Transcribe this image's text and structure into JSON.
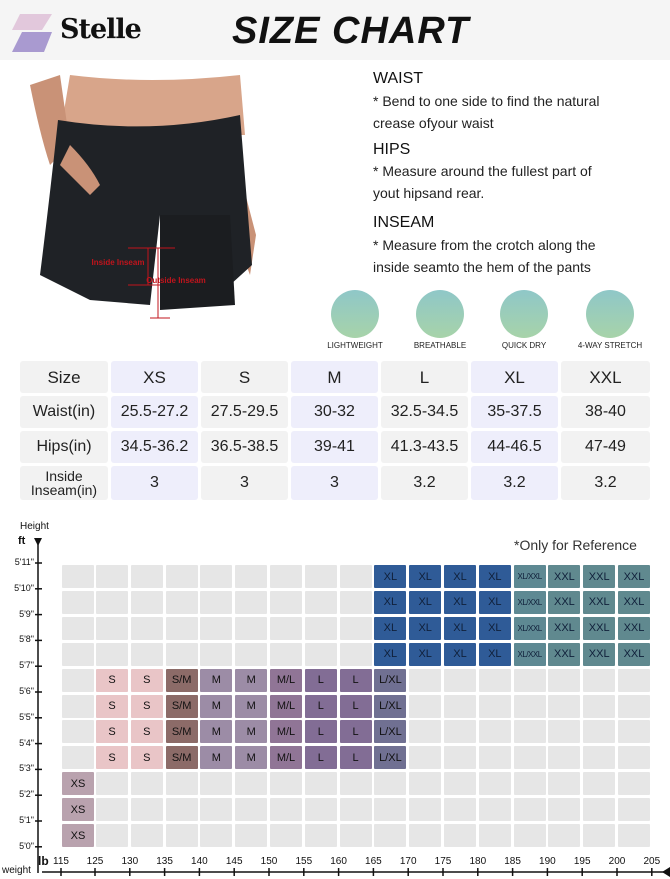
{
  "header": {
    "brand": "Stelle",
    "title": "SIZE CHART"
  },
  "photo": {
    "inside_label": "Inside Inseam",
    "outside_label": "Outside Inseam"
  },
  "guide": [
    {
      "heading": "WAIST",
      "lines": [
        "* Bend to one side to find the natural",
        "crease ofyour waist"
      ]
    },
    {
      "heading": "HIPS",
      "lines": [
        "* Measure around the fullest part of",
        "yout hipsand rear."
      ]
    },
    {
      "heading": "INSEAM",
      "lines": [
        "* Measure from the crotch along the",
        "inside seamto the hem of the pants"
      ]
    }
  ],
  "features": [
    {
      "icon": "feather-icon",
      "label": "LIGHTWEIGHT"
    },
    {
      "icon": "airflow-icon",
      "label": "BREATHABLE"
    },
    {
      "icon": "water-drops-icon",
      "label": "QUICK DRY"
    },
    {
      "icon": "stretch-mesh-icon",
      "label": "4-WAY STRETCH"
    }
  ],
  "size_table": {
    "headers": [
      "Size",
      "XS",
      "S",
      "M",
      "L",
      "XL",
      "XXL"
    ],
    "rows": [
      [
        "Waist(in)",
        "25.5-27.2",
        "27.5-29.5",
        "30-32",
        "32.5-34.5",
        "35-37.5",
        "38-40"
      ],
      [
        "Hips(in)",
        "34.5-36.2",
        "36.5-38.5",
        "39-41",
        "41.3-43.5",
        "44-46.5",
        "47-49"
      ],
      [
        "Inside Inseam(in)",
        "3",
        "3",
        "3",
        "3.2",
        "3.2",
        "3.2"
      ]
    ],
    "colors": {
      "neutral": "#f2f2f2",
      "highlight": "#eeeefb"
    }
  },
  "fit_chart": {
    "y_label": "Height",
    "y_unit": "ft",
    "x_label": "weight",
    "x_unit": "lb",
    "note": "*Only for Reference",
    "height_ticks": [
      "5'11\"",
      "5'10\"",
      "5'9\"",
      "5'8\"",
      "5'7\"",
      "5'6\"",
      "5'5\"",
      "5'4\"",
      "5'3\"",
      "5'2\"",
      "5'1\"",
      "5'0\""
    ],
    "weight_ticks": [
      "115",
      "125",
      "130",
      "135",
      "140",
      "145",
      "150",
      "155",
      "160",
      "165",
      "170",
      "175",
      "180",
      "185",
      "190",
      "195",
      "200",
      "205"
    ],
    "rows": [
      [
        "",
        "",
        "",
        "",
        "",
        "",
        "",
        "",
        "",
        "XL",
        "XL",
        "XL",
        "XL",
        "XL/XXL",
        "XXL",
        "XXL",
        "XXL"
      ],
      [
        "",
        "",
        "",
        "",
        "",
        "",
        "",
        "",
        "",
        "XL",
        "XL",
        "XL",
        "XL",
        "XL/XXL",
        "XXL",
        "XXL",
        "XXL"
      ],
      [
        "",
        "",
        "",
        "",
        "",
        "",
        "",
        "",
        "",
        "XL",
        "XL",
        "XL",
        "XL",
        "XL/XXL",
        "XXL",
        "XXL",
        "XXL"
      ],
      [
        "",
        "",
        "",
        "",
        "",
        "",
        "",
        "",
        "",
        "XL",
        "XL",
        "XL",
        "XL",
        "XL/XXL",
        "XXL",
        "XXL",
        "XXL"
      ],
      [
        "",
        "S",
        "S",
        "S/M",
        "M",
        "M",
        "M/L",
        "L",
        "L",
        "L/XL",
        "",
        "",
        "",
        "",
        "",
        "",
        ""
      ],
      [
        "",
        "S",
        "S",
        "S/M",
        "M",
        "M",
        "M/L",
        "L",
        "L",
        "L/XL",
        "",
        "",
        "",
        "",
        "",
        "",
        ""
      ],
      [
        "",
        "S",
        "S",
        "S/M",
        "M",
        "M",
        "M/L",
        "L",
        "L",
        "L/XL",
        "",
        "",
        "",
        "",
        "",
        "",
        ""
      ],
      [
        "",
        "S",
        "S",
        "S/M",
        "M",
        "M",
        "M/L",
        "L",
        "L",
        "L/XL",
        "",
        "",
        "",
        "",
        "",
        "",
        ""
      ],
      [
        "XS",
        "",
        "",
        "",
        "",
        "",
        "",
        "",
        "",
        "",
        "",
        "",
        "",
        "",
        "",
        "",
        ""
      ],
      [
        "XS",
        "",
        "",
        "",
        "",
        "",
        "",
        "",
        "",
        "",
        "",
        "",
        "",
        "",
        "",
        "",
        ""
      ],
      [
        "XS",
        "",
        "",
        "",
        "",
        "",
        "",
        "",
        "",
        "",
        "",
        "",
        "",
        "",
        "",
        "",
        ""
      ]
    ],
    "size_colors": {
      "XS": "#b9a2ae",
      "S": "#e9c5c7",
      "S/M": "#8c6b68",
      "M": "#9c8ca6",
      "M/L": "#907596",
      "L": "#826d95",
      "L/XL": "#707092",
      "XL": "#2f5b97",
      "XL/XXL": "#5e8993",
      "XXL": "#60898f",
      "empty": "#e6e6e6"
    }
  }
}
